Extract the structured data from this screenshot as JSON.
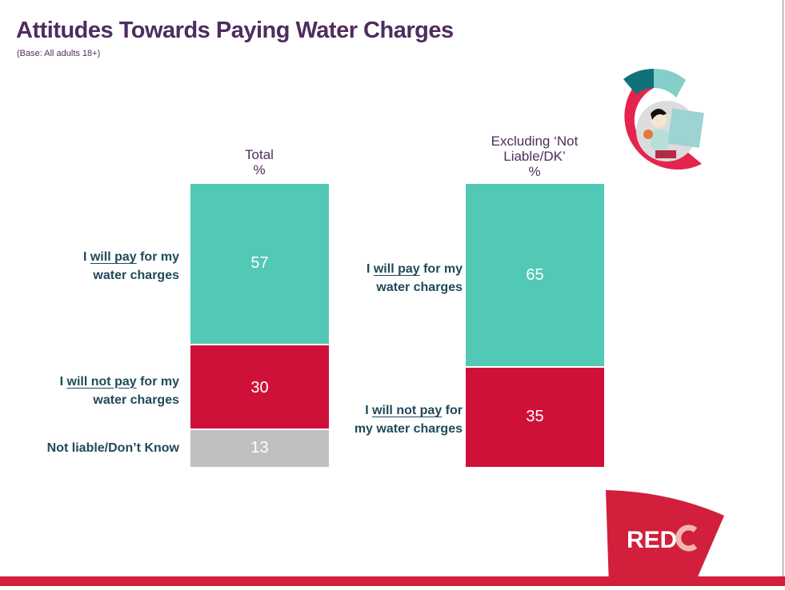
{
  "title": "Attitudes Towards Paying Water Charges",
  "subtitle": "(Base: All adults 18+)",
  "logo_text": "REDC",
  "colors": {
    "will_pay": "#52c9b4",
    "will_not_pay": "#cf113a",
    "not_liable": "#c0c0c0",
    "title": "#4f2d5e",
    "label": "#1f4a5a",
    "brand": "#d11f3c"
  },
  "chart_data": [
    {
      "type": "bar",
      "stacked": true,
      "title": "Total\n%",
      "title_lines": [
        "Total",
        "%"
      ],
      "series": [
        {
          "name": "I will pay for my water charges",
          "label_parts": [
            [
              "I ",
              "will pay",
              " for my"
            ],
            [
              "water charges"
            ]
          ],
          "value": 57,
          "color": "#52c9b4"
        },
        {
          "name": "I will not pay for my water charges",
          "label_parts": [
            [
              "I ",
              "will not pay",
              " for my"
            ],
            [
              "water charges"
            ]
          ],
          "value": 30,
          "color": "#cf113a"
        },
        {
          "name": "Not liable/Don’t Know",
          "label_parts": [
            [
              "Not liable/Don’t Know"
            ]
          ],
          "value": 13,
          "color": "#c0c0c0"
        }
      ]
    },
    {
      "type": "bar",
      "stacked": true,
      "title_lines": [
        "Excluding ‘Not",
        "Liable/DK’",
        "%"
      ],
      "series": [
        {
          "name": "I will pay for my water charges",
          "label_parts": [
            [
              "I ",
              "will pay",
              " for my"
            ],
            [
              "water charges"
            ]
          ],
          "value": 65,
          "color": "#52c9b4"
        },
        {
          "name": "I will not pay for my water charges",
          "label_parts": [
            [
              "I ",
              "will not pay",
              " for"
            ],
            [
              "my water charges"
            ]
          ],
          "value": 35,
          "color": "#cf113a"
        }
      ]
    }
  ]
}
